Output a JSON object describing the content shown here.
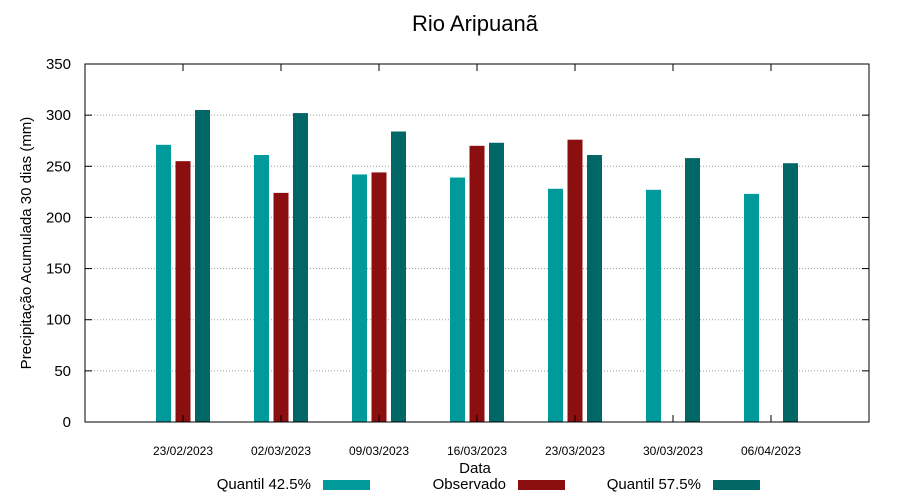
{
  "chart_data": {
    "type": "bar",
    "title": "Rio Aripuanã",
    "xlabel": "Data",
    "ylabel": "Precipitação Acumulada 30 dias (mm)",
    "ylim": [
      0,
      350
    ],
    "yticks": [
      0,
      50,
      100,
      150,
      200,
      250,
      300,
      350
    ],
    "grid": true,
    "legend_position": "bottom",
    "categories": [
      "23/02/2023",
      "02/03/2023",
      "09/03/2023",
      "16/03/2023",
      "23/03/2023",
      "30/03/2023",
      "06/04/2023"
    ],
    "series": [
      {
        "name": "Quantil 42.5%",
        "color": "#009a9a",
        "values": [
          271,
          261,
          242,
          239,
          228,
          227,
          223
        ]
      },
      {
        "name": "Observado",
        "color": "#8b0f0f",
        "values": [
          255,
          224,
          244,
          270,
          276,
          null,
          null
        ]
      },
      {
        "name": "Quantil 57.5%",
        "color": "#006666",
        "values": [
          305,
          302,
          284,
          273,
          261,
          258,
          253
        ]
      }
    ]
  }
}
